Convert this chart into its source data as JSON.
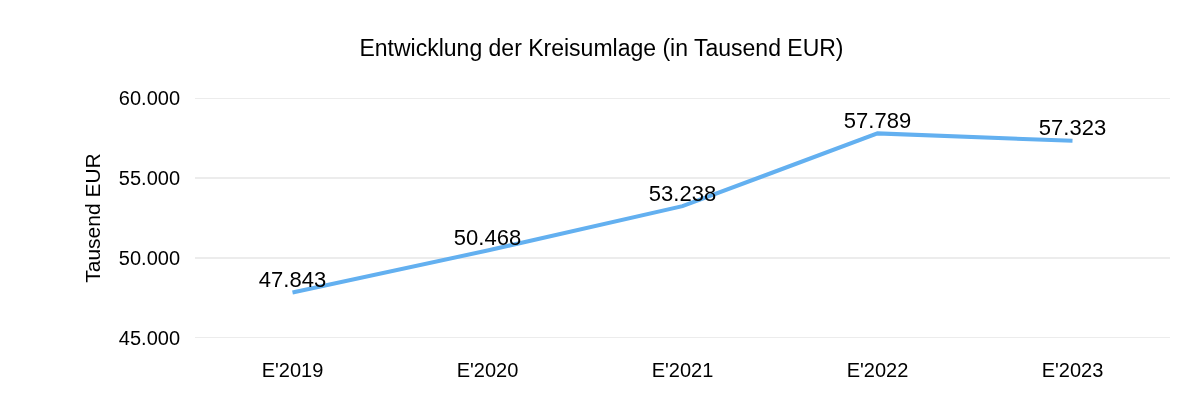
{
  "chart_data": {
    "type": "line",
    "title": "Entwicklung der Kreisumlage (in Tausend EUR)",
    "ylabel": "Tausend EUR",
    "categories": [
      "E'2019",
      "E'2020",
      "E'2021",
      "E'2022",
      "E'2023"
    ],
    "series": [
      {
        "color": "#63b0f0",
        "values": [
          47843,
          50468,
          53238,
          57789,
          57323
        ],
        "value_labels": [
          "47.843",
          "50.468",
          "53.238",
          "57.789",
          "57.323"
        ]
      }
    ],
    "ylim": [
      45000,
      60000
    ],
    "yticks": [
      {
        "value": 45000,
        "label": "45.000"
      },
      {
        "value": 50000,
        "label": "50.000"
      },
      {
        "value": 55000,
        "label": "55.000"
      },
      {
        "value": 60000,
        "label": "60.000"
      }
    ],
    "grid": "y",
    "marker": "none",
    "line_style": "solid"
  }
}
